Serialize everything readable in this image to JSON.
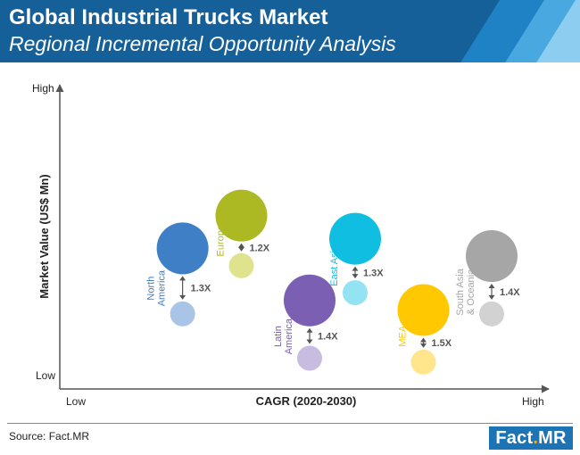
{
  "header": {
    "title": "Global Industrial Trucks Market",
    "subtitle": "Regional Incremental Opportunity Analysis"
  },
  "chart_data": {
    "type": "bubble",
    "xlabel": "CAGR (2020-2030)",
    "ylabel": "Market Value (US$ Mn)",
    "x_low_label": "Low",
    "x_high_label": "High",
    "y_low_label": "Low",
    "y_high_label": "High",
    "xlim": [
      0,
      100
    ],
    "ylim": [
      0,
      100
    ],
    "regions": [
      {
        "name": "North America",
        "label_lines": [
          "North",
          "America"
        ],
        "color": "#3f7fc6",
        "small_color": "#a9c4e6",
        "x": 14.5,
        "y_current": 26,
        "y_future": 60,
        "multiplier": "1.3X"
      },
      {
        "name": "Europe",
        "label_lines": [
          "Europe"
        ],
        "color": "#adb923",
        "small_color": "#dfe38e",
        "x": 30,
        "y_current": 51,
        "y_future": 77,
        "multiplier": "1.2X"
      },
      {
        "name": "Latin America",
        "label_lines": [
          "Latin",
          "America"
        ],
        "color": "#7a5fb3",
        "small_color": "#c8bce0",
        "x": 48,
        "y_current": 3,
        "y_future": 33,
        "multiplier": "1.4X"
      },
      {
        "name": "East Asia",
        "label_lines": [
          "East Asia"
        ],
        "color": "#0fbee0",
        "small_color": "#93e3f3",
        "x": 60,
        "y_current": 37,
        "y_future": 65,
        "multiplier": "1.3X"
      },
      {
        "name": "MEA",
        "label_lines": [
          "MEA"
        ],
        "color": "#ffc800",
        "small_color": "#ffe58b",
        "x": 78,
        "y_current": 1,
        "y_future": 28,
        "multiplier": "1.5X"
      },
      {
        "name": "South Asia & Oceania",
        "label_lines": [
          "South Asia",
          "& Oceania"
        ],
        "color": "#a6a6a6",
        "small_color": "#d2d2d2",
        "x": 96,
        "y_current": 26,
        "y_future": 56,
        "multiplier": "1.4X"
      }
    ]
  },
  "footer": {
    "source": "Source: Fact.MR",
    "logo": "Fact.MR"
  }
}
